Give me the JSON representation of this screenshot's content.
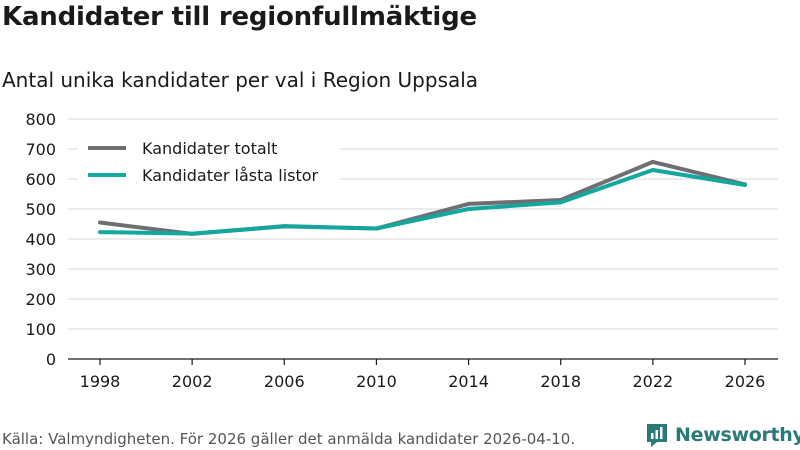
{
  "title": "Kandidater till regionfullmäktige",
  "subtitle": "Antal unika kandidater per val i Region Uppsala",
  "source": "Källa: Valmyndigheten. För 2026 gäller det anmälda kandidater 2026-04-10.",
  "brand": {
    "name": "Newsworthy",
    "logo_icon": "newsworthy-logo-icon",
    "color": "#2a7a78"
  },
  "chart_data": {
    "type": "line",
    "title": "Kandidater till regionfullmäktige",
    "subtitle": "Antal unika kandidater per val i Region Uppsala",
    "xlabel": "",
    "ylabel": "",
    "categories": [
      "1998",
      "2002",
      "2006",
      "2010",
      "2014",
      "2018",
      "2022",
      "2026"
    ],
    "y_ticks": [
      "0",
      "100",
      "200",
      "300",
      "400",
      "500",
      "600",
      "700",
      "800"
    ],
    "ylim": [
      0,
      800
    ],
    "grid": true,
    "legend_position": "top-left",
    "series": [
      {
        "name": "Kandidater totalt",
        "color": "#6e6e73",
        "values": [
          455,
          417,
          443,
          435,
          517,
          530,
          657,
          582
        ]
      },
      {
        "name": "Kandidater låsta listor",
        "color": "#13a89e",
        "values": [
          423,
          418,
          442,
          435,
          500,
          522,
          630,
          580
        ]
      }
    ]
  }
}
